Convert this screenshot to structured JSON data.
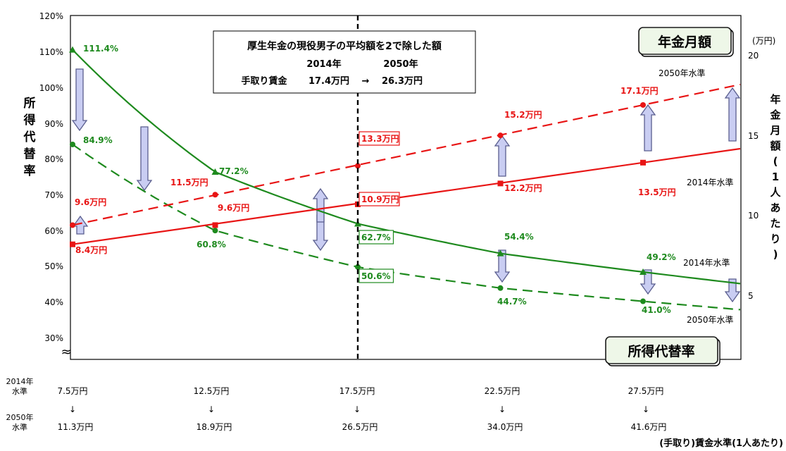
{
  "chart_data": {
    "type": "line",
    "left_axis": {
      "ticks": [
        "120%",
        "110%",
        "100%",
        "90%",
        "80%",
        "70%",
        "60%",
        "50%",
        "40%",
        "30%"
      ],
      "title": "所得代替率",
      "break_mark": "≈"
    },
    "right_axis": {
      "unit": "(万円)",
      "ticks": [
        "20",
        "15",
        "10",
        "5"
      ],
      "title": "年金月額(1人あたり)"
    },
    "x_bottom": {
      "row_2014_label": "2014年水準",
      "row_2050_label": "2050年水準",
      "wages_2014": [
        "7.5万円",
        "12.5万円",
        "17.5万円",
        "22.5万円",
        "27.5万円"
      ],
      "wages_2050": [
        "11.3万円",
        "18.9万円",
        "26.5万円",
        "34.0万円",
        "41.6万円"
      ],
      "arrow": "↓",
      "axis_title": "(手取り)賃金水準(1人あたり)"
    },
    "info_box": {
      "line1": "厚生年金の現役男子の平均額を2で除した額",
      "line2_year_a": "2014年",
      "line2_year_b": "2050年",
      "line3_label": "手取り賃金",
      "line3_a": "17.4万円",
      "line3_arrow": "→",
      "line3_b": "26.3万円"
    },
    "box_pension": "年金月額",
    "box_replacement": "所得代替率",
    "series": [
      {
        "name": "2014年水準",
        "kind": "replacement",
        "axis": "left",
        "color": "#1e8a1e",
        "dash": false,
        "x": [
          7.5,
          12.5,
          17.5,
          22.5,
          27.5
        ],
        "y": [
          111.4,
          77.2,
          62.7,
          54.4,
          49.2
        ],
        "labels": [
          "111.4%",
          "77.2%",
          "62.7%",
          "54.4%",
          "49.2%"
        ]
      },
      {
        "name": "2050年水準",
        "kind": "replacement",
        "axis": "left",
        "color": "#1e8a1e",
        "dash": true,
        "x": [
          7.5,
          12.5,
          17.5,
          22.5,
          27.5
        ],
        "y": [
          84.9,
          60.8,
          50.6,
          44.7,
          41.0
        ],
        "labels": [
          "84.9%",
          "60.8%",
          "50.6%",
          "44.7%",
          "41.0%"
        ]
      },
      {
        "name": "2014年水準",
        "kind": "pension",
        "axis": "right",
        "color": "#e81515",
        "dash": false,
        "x": [
          7.5,
          12.5,
          17.5,
          22.5,
          27.5
        ],
        "y": [
          8.4,
          9.6,
          10.9,
          12.2,
          13.5
        ],
        "labels": [
          "8.4万円",
          "9.6万円",
          "10.9万円",
          "12.2万円",
          "13.5万円"
        ]
      },
      {
        "name": "2050年水準",
        "kind": "pension",
        "axis": "right",
        "color": "#e81515",
        "dash": true,
        "x": [
          7.5,
          12.5,
          17.5,
          22.5,
          27.5
        ],
        "y": [
          9.6,
          11.5,
          13.3,
          15.2,
          17.1
        ],
        "labels": [
          "9.6万円",
          "11.5万円",
          "13.3万円",
          "15.2万円",
          "17.1万円"
        ]
      }
    ],
    "line_level_labels": {
      "pension_2050": "2050年水準",
      "pension_2014": "2014年水準",
      "replacement_2014": "2014年水準",
      "replacement_2050": "2050年水準"
    },
    "ylim_left": [
      25,
      120
    ],
    "ylim_right": [
      0,
      20
    ],
    "vertical_marker_x": 17.5,
    "colors": {
      "replacement": "#1e8a1e",
      "pension": "#e81515",
      "arrow_fill": "#c9cdf2",
      "arrow_stroke": "#5a5e8e"
    }
  }
}
